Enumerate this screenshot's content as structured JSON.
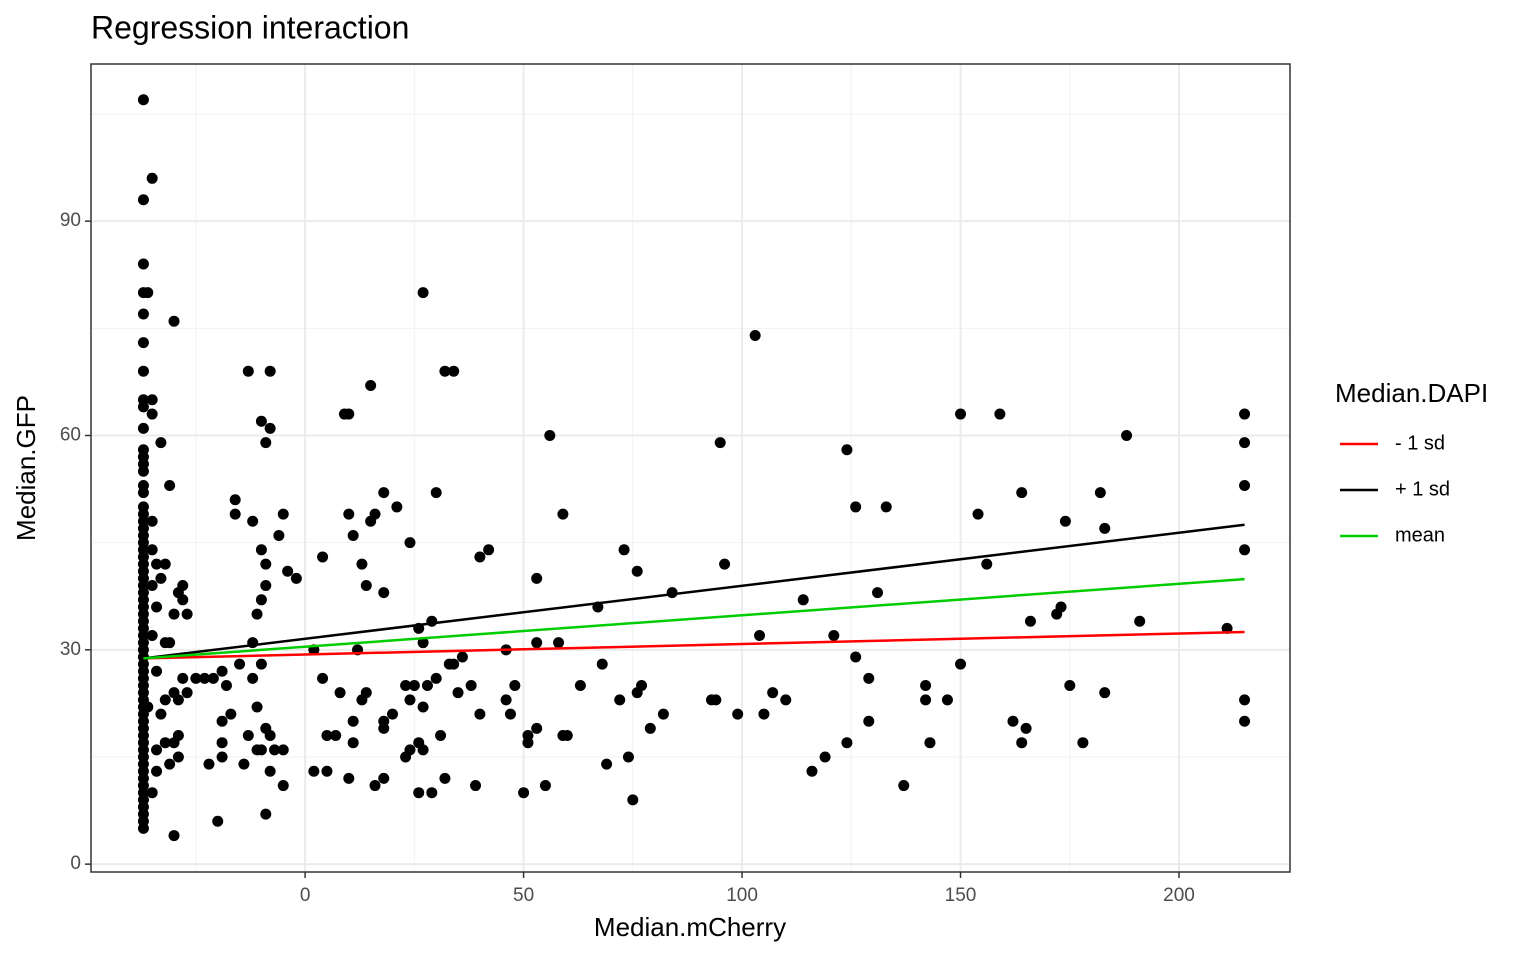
{
  "chart_data": {
    "type": "scatter",
    "title": "Regression interaction",
    "x_label": "Median.mCherry",
    "y_label": "Median.GFP",
    "xlim": [
      -49,
      225.4
    ],
    "ylim": [
      -1.1,
      112
    ],
    "xticks": [
      0,
      50,
      100,
      150,
      200
    ],
    "yticks": [
      0,
      30,
      60,
      90
    ],
    "xminorticks": [
      -25,
      25,
      75,
      125,
      175
    ],
    "yminorticks": [
      15,
      45,
      75,
      105
    ],
    "grid": true,
    "points": {
      "color": "#000000",
      "values": [
        [
          -37,
          107
        ],
        [
          -37,
          93
        ],
        [
          -37,
          84
        ],
        [
          -37,
          80
        ],
        [
          -37,
          77
        ],
        [
          -37,
          73
        ],
        [
          -37,
          69
        ],
        [
          -37,
          65
        ],
        [
          -37,
          64
        ],
        [
          -37,
          61
        ],
        [
          -37,
          58
        ],
        [
          -37,
          57
        ],
        [
          -37,
          56
        ],
        [
          -37,
          55
        ],
        [
          -37,
          53
        ],
        [
          -37,
          52
        ],
        [
          -37,
          50
        ],
        [
          -37,
          49
        ],
        [
          -37,
          48
        ],
        [
          -37,
          47
        ],
        [
          -37,
          46
        ],
        [
          -37,
          45
        ],
        [
          -37,
          44
        ],
        [
          -37,
          43
        ],
        [
          -37,
          42
        ],
        [
          -37,
          41
        ],
        [
          -37,
          40
        ],
        [
          -37,
          39
        ],
        [
          -37,
          38
        ],
        [
          -37,
          37
        ],
        [
          -37,
          36
        ],
        [
          -37,
          35
        ],
        [
          -37,
          34
        ],
        [
          -37,
          33
        ],
        [
          -37,
          32
        ],
        [
          -37,
          31
        ],
        [
          -37,
          30
        ],
        [
          -37,
          29
        ],
        [
          -37,
          28
        ],
        [
          -37,
          27
        ],
        [
          -37,
          26
        ],
        [
          -37,
          25
        ],
        [
          -37,
          24
        ],
        [
          -37,
          23
        ],
        [
          -37,
          22
        ],
        [
          -37,
          21
        ],
        [
          -37,
          20
        ],
        [
          -37,
          19
        ],
        [
          -37,
          18
        ],
        [
          -37,
          17
        ],
        [
          -37,
          16
        ],
        [
          -37,
          15
        ],
        [
          -37,
          14
        ],
        [
          -37,
          13
        ],
        [
          -37,
          12
        ],
        [
          -37,
          11
        ],
        [
          -37,
          10
        ],
        [
          -37,
          9
        ],
        [
          -37,
          8
        ],
        [
          -37,
          7
        ],
        [
          -37,
          6
        ],
        [
          -37,
          5
        ],
        [
          -36,
          80
        ],
        [
          -35,
          96
        ],
        [
          -35,
          65
        ],
        [
          -35,
          63
        ],
        [
          -35,
          48
        ],
        [
          -35,
          44
        ],
        [
          -34,
          42
        ],
        [
          -33,
          59
        ],
        [
          -32,
          42
        ],
        [
          -35,
          39
        ],
        [
          -33,
          40
        ],
        [
          -34,
          36
        ],
        [
          -35,
          32
        ],
        [
          -32,
          31
        ],
        [
          -31,
          53
        ],
        [
          -31,
          31
        ],
        [
          -30,
          76
        ],
        [
          -30,
          35
        ],
        [
          -29,
          38
        ],
        [
          -28,
          39
        ],
        [
          -28,
          37
        ],
        [
          -27,
          35
        ],
        [
          -28,
          26
        ],
        [
          -30,
          24
        ],
        [
          -29,
          23
        ],
        [
          -30,
          17
        ],
        [
          -31,
          14
        ],
        [
          -29,
          18
        ],
        [
          -29,
          15
        ],
        [
          -30,
          4
        ],
        [
          -33,
          21
        ],
        [
          -32,
          23
        ],
        [
          -34,
          27
        ],
        [
          -34,
          13
        ],
        [
          -35,
          10
        ],
        [
          -36,
          22
        ],
        [
          -34,
          16
        ],
        [
          -32,
          17
        ],
        [
          -27,
          24
        ],
        [
          -25,
          26
        ],
        [
          -23,
          26
        ],
        [
          -22,
          14
        ],
        [
          -20,
          6
        ],
        [
          -21,
          26
        ],
        [
          -19,
          27
        ],
        [
          -19,
          20
        ],
        [
          -19,
          17
        ],
        [
          -19,
          15
        ],
        [
          -18,
          25
        ],
        [
          -17,
          21
        ],
        [
          -16,
          51
        ],
        [
          -16,
          49
        ],
        [
          -15,
          28
        ],
        [
          -14,
          14
        ],
        [
          -13,
          69
        ],
        [
          -13,
          18
        ],
        [
          -12,
          48
        ],
        [
          -12,
          31
        ],
        [
          -12,
          26
        ],
        [
          -11,
          35
        ],
        [
          -11,
          22
        ],
        [
          -10,
          44
        ],
        [
          -10,
          37
        ],
        [
          -10,
          62
        ],
        [
          -9,
          59
        ],
        [
          -9,
          42
        ],
        [
          -9,
          39
        ],
        [
          -9,
          19
        ],
        [
          -9,
          7
        ],
        [
          -8,
          69
        ],
        [
          -8,
          61
        ],
        [
          -8,
          18
        ],
        [
          -8,
          13
        ],
        [
          -6,
          46
        ],
        [
          -5,
          49
        ],
        [
          -4,
          41
        ],
        [
          -5,
          16
        ],
        [
          -5,
          11
        ],
        [
          -2,
          40
        ],
        [
          -10,
          16
        ],
        [
          -10,
          28
        ],
        [
          -11,
          16
        ],
        [
          -7,
          16
        ],
        [
          2,
          30
        ],
        [
          2,
          13
        ],
        [
          4,
          43
        ],
        [
          4,
          26
        ],
        [
          5,
          18
        ],
        [
          5,
          13
        ],
        [
          7,
          18
        ],
        [
          8,
          24
        ],
        [
          9,
          63
        ],
        [
          10,
          63
        ],
        [
          10,
          49
        ],
        [
          10,
          12
        ],
        [
          11,
          46
        ],
        [
          11,
          20
        ],
        [
          11,
          17
        ],
        [
          12,
          30
        ],
        [
          13,
          42
        ],
        [
          13,
          23
        ],
        [
          14,
          39
        ],
        [
          14,
          24
        ],
        [
          15,
          48
        ],
        [
          15,
          67
        ],
        [
          16,
          49
        ],
        [
          16,
          11
        ],
        [
          18,
          52
        ],
        [
          18,
          38
        ],
        [
          18,
          20
        ],
        [
          18,
          19
        ],
        [
          18,
          12
        ],
        [
          20,
          21
        ],
        [
          21,
          50
        ],
        [
          23,
          25
        ],
        [
          23,
          15
        ],
        [
          24,
          45
        ],
        [
          24,
          16
        ],
        [
          24,
          23
        ],
        [
          25,
          25
        ],
        [
          26,
          33
        ],
        [
          26,
          17
        ],
        [
          26,
          10
        ],
        [
          27,
          80
        ],
        [
          27,
          31
        ],
        [
          27,
          22
        ],
        [
          27,
          16
        ],
        [
          28,
          25
        ],
        [
          29,
          34
        ],
        [
          29,
          10
        ],
        [
          30,
          52
        ],
        [
          30,
          26
        ],
        [
          31,
          18
        ],
        [
          32,
          69
        ],
        [
          32,
          12
        ],
        [
          33,
          28
        ],
        [
          34,
          69
        ],
        [
          34,
          28
        ],
        [
          35,
          24
        ],
        [
          36,
          29
        ],
        [
          38,
          25
        ],
        [
          39,
          11
        ],
        [
          40,
          43
        ],
        [
          40,
          21
        ],
        [
          42,
          44
        ],
        [
          46,
          30
        ],
        [
          46,
          23
        ],
        [
          47,
          21
        ],
        [
          48,
          25
        ],
        [
          50,
          10
        ],
        [
          51,
          18
        ],
        [
          51,
          17
        ],
        [
          53,
          40
        ],
        [
          53,
          31
        ],
        [
          53,
          19
        ],
        [
          55,
          11
        ],
        [
          56,
          60
        ],
        [
          58,
          31
        ],
        [
          59,
          49
        ],
        [
          59,
          18
        ],
        [
          60,
          18
        ],
        [
          63,
          25
        ],
        [
          67,
          36
        ],
        [
          68,
          28
        ],
        [
          69,
          14
        ],
        [
          72,
          23
        ],
        [
          73,
          44
        ],
        [
          74,
          15
        ],
        [
          75,
          9
        ],
        [
          76,
          41
        ],
        [
          76,
          24
        ],
        [
          77,
          25
        ],
        [
          79,
          19
        ],
        [
          82,
          21
        ],
        [
          84,
          38
        ],
        [
          93,
          23
        ],
        [
          94,
          23
        ],
        [
          95,
          59
        ],
        [
          96,
          42
        ],
        [
          99,
          21
        ],
        [
          103,
          74
        ],
        [
          104,
          32
        ],
        [
          105,
          21
        ],
        [
          107,
          24
        ],
        [
          110,
          23
        ],
        [
          114,
          37
        ],
        [
          116,
          13
        ],
        [
          119,
          15
        ],
        [
          121,
          32
        ],
        [
          124,
          58
        ],
        [
          124,
          17
        ],
        [
          126,
          50
        ],
        [
          126,
          29
        ],
        [
          129,
          26
        ],
        [
          129,
          20
        ],
        [
          131,
          38
        ],
        [
          133,
          50
        ],
        [
          137,
          11
        ],
        [
          142,
          25
        ],
        [
          142,
          23
        ],
        [
          143,
          17
        ],
        [
          147,
          23
        ],
        [
          150,
          63
        ],
        [
          150,
          28
        ],
        [
          154,
          49
        ],
        [
          156,
          42
        ],
        [
          159,
          63
        ],
        [
          162,
          20
        ],
        [
          164,
          52
        ],
        [
          164,
          17
        ],
        [
          165,
          19
        ],
        [
          166,
          34
        ],
        [
          172,
          35
        ],
        [
          173,
          36
        ],
        [
          174,
          48
        ],
        [
          175,
          25
        ],
        [
          178,
          17
        ],
        [
          182,
          52
        ],
        [
          183,
          47
        ],
        [
          183,
          24
        ],
        [
          188,
          60
        ],
        [
          191,
          34
        ],
        [
          211,
          33
        ],
        [
          215,
          63
        ],
        [
          215,
          59
        ],
        [
          215,
          53
        ],
        [
          215,
          44
        ],
        [
          215,
          23
        ],
        [
          215,
          20
        ]
      ]
    },
    "legend_title": "Median.DAPI",
    "legend_position": "right",
    "lines": [
      {
        "name": "- 1 sd",
        "color": "#ff0000",
        "x": [
          -37,
          215
        ],
        "y": [
          28.8,
          32.5
        ]
      },
      {
        "name": "+ 1 sd",
        "color": "#000000",
        "x": [
          -37,
          215
        ],
        "y": [
          28.8,
          47.5
        ]
      },
      {
        "name": "mean",
        "color": "#00cd00",
        "x": [
          -37,
          215
        ],
        "y": [
          28.8,
          39.9
        ]
      }
    ]
  }
}
